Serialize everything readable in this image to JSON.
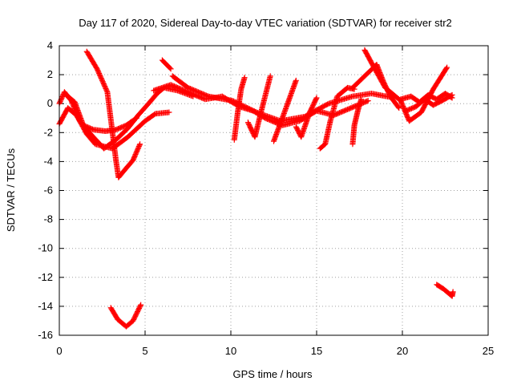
{
  "chart_data": {
    "type": "scatter",
    "title": "Day 117 of 2020, Sidereal Day-to-day VTEC variation (SDTVAR) for receiver str2",
    "xlabel": "GPS time / hours",
    "ylabel": "SDTVAR / TECUs",
    "xlim": [
      0,
      25
    ],
    "ylim": [
      -16,
      4
    ],
    "xticks": [
      "0",
      "5",
      "10",
      "15",
      "20",
      "25"
    ],
    "yticks": [
      "4",
      "2",
      "0",
      "-2",
      "-4",
      "-6",
      "-8",
      "-10",
      "-12",
      "-14",
      "-16"
    ],
    "grid": true,
    "marker": "+",
    "color": "#ff0000",
    "tracks": [
      [
        [
          1.6,
          3.6
        ],
        [
          2.2,
          2.4
        ],
        [
          2.8,
          0.8
        ],
        [
          3.1,
          -2.0
        ],
        [
          3.3,
          -3.9
        ],
        [
          3.45,
          -5.1
        ],
        [
          3.8,
          -4.6
        ],
        [
          4.3,
          -3.9
        ],
        [
          4.7,
          -2.8
        ]
      ],
      [
        [
          3.0,
          -14.1
        ],
        [
          3.4,
          -14.9
        ],
        [
          3.9,
          -15.4
        ],
        [
          4.3,
          -15.0
        ],
        [
          4.75,
          -13.9
        ]
      ],
      [
        [
          0,
          0
        ],
        [
          0.3,
          0.8
        ],
        [
          0.7,
          0.2
        ],
        [
          1.2,
          -1.2
        ],
        [
          1.9,
          -2.2
        ],
        [
          2.6,
          -3.1
        ],
        [
          3.3,
          -2.5
        ],
        [
          4.0,
          -1.7
        ],
        [
          4.6,
          -0.8
        ],
        [
          5.2,
          0
        ],
        [
          5.7,
          0.7
        ],
        [
          6.1,
          1.1
        ],
        [
          6.9,
          0.9
        ],
        [
          7.8,
          0.5
        ]
      ],
      [
        [
          0,
          -1.4
        ],
        [
          0.5,
          -0.3
        ],
        [
          1.0,
          -0.8
        ],
        [
          1.6,
          -2.1
        ],
        [
          2.1,
          -2.8
        ],
        [
          3.1,
          -3.1
        ],
        [
          4.0,
          -2.3
        ],
        [
          5.0,
          -1.2
        ],
        [
          5.6,
          -0.7
        ],
        [
          6.4,
          -0.6
        ]
      ],
      [
        [
          0.4,
          0.6
        ],
        [
          0.9,
          0.1
        ],
        [
          1.4,
          -1.5
        ],
        [
          2.0,
          -1.8
        ],
        [
          2.7,
          -1.9
        ],
        [
          3.3,
          -1.8
        ],
        [
          3.9,
          -1.5
        ],
        [
          4.5,
          -1.0
        ]
      ],
      [
        [
          6.0,
          3.0
        ],
        [
          6.5,
          2.4
        ]
      ],
      [
        [
          6.6,
          1.9
        ],
        [
          7.5,
          1.1
        ],
        [
          8.7,
          0.5
        ],
        [
          10.1,
          0.2
        ],
        [
          11.5,
          -0.6
        ],
        [
          12.9,
          -1.2
        ],
        [
          14.3,
          -0.9
        ],
        [
          15.7,
          0
        ],
        [
          17.1,
          0.5
        ],
        [
          18.2,
          0.7
        ],
        [
          19.5,
          0.4
        ]
      ],
      [
        [
          5.5,
          0.9
        ],
        [
          6.5,
          1.3
        ],
        [
          7.5,
          0.8
        ],
        [
          8.5,
          0.3
        ],
        [
          9.5,
          0.5
        ],
        [
          10.5,
          -0.2
        ],
        [
          11.3,
          -0.5
        ],
        [
          12.0,
          -1.0
        ],
        [
          13.0,
          -1.5
        ],
        [
          14.0,
          -1.2
        ],
        [
          15.0,
          -0.5
        ],
        [
          16.0,
          -0.8
        ],
        [
          17.0,
          -0.3
        ],
        [
          18.0,
          0.2
        ]
      ],
      [
        [
          10.2,
          -2.5
        ],
        [
          10.4,
          -0.6
        ],
        [
          10.6,
          1.0
        ],
        [
          10.8,
          1.8
        ]
      ],
      [
        [
          11.0,
          -1.3
        ],
        [
          11.4,
          -2.3
        ],
        [
          11.8,
          -0.4
        ],
        [
          12.3,
          1.9
        ]
      ],
      [
        [
          12.5,
          -2.6
        ],
        [
          13.0,
          -1.0
        ],
        [
          13.4,
          0.3
        ],
        [
          13.8,
          1.6
        ]
      ],
      [
        [
          13.8,
          -1.6
        ],
        [
          14.1,
          -2.3
        ],
        [
          14.6,
          -0.6
        ],
        [
          15.0,
          0.4
        ]
      ],
      [
        [
          15.2,
          -3.1
        ],
        [
          15.5,
          -2.8
        ],
        [
          15.8,
          -1.2
        ],
        [
          16.2,
          0.5
        ],
        [
          16.8,
          1.1
        ],
        [
          17.2,
          1.0
        ]
      ],
      [
        [
          17.1,
          -2.8
        ],
        [
          17.2,
          -1.5
        ],
        [
          17.4,
          -0.5
        ],
        [
          17.6,
          0.3
        ]
      ],
      [
        [
          17.8,
          3.7
        ],
        [
          18.3,
          2.6
        ],
        [
          19.0,
          1.1
        ],
        [
          19.5,
          0.6
        ],
        [
          19.9,
          0.2
        ],
        [
          20.4,
          -1.2
        ],
        [
          21.1,
          -0.6
        ],
        [
          21.8,
          1.0
        ],
        [
          22.6,
          2.5
        ]
      ],
      [
        [
          17.1,
          1.1
        ],
        [
          17.8,
          1.9
        ],
        [
          18.5,
          2.7
        ],
        [
          18.9,
          1.5
        ],
        [
          19.3,
          0.5
        ],
        [
          19.8,
          -0.3
        ]
      ],
      [
        [
          19.9,
          0.3
        ],
        [
          20.5,
          0.5
        ],
        [
          21.0,
          0.1
        ],
        [
          21.5,
          0.6
        ],
        [
          22.0,
          0.3
        ],
        [
          22.5,
          0.7
        ],
        [
          22.9,
          0.4
        ]
      ],
      [
        [
          20.2,
          -0.5
        ],
        [
          20.8,
          -0.2
        ],
        [
          21.3,
          0.3
        ],
        [
          21.8,
          -0.1
        ],
        [
          22.3,
          0.2
        ],
        [
          22.9,
          0.6
        ]
      ],
      [
        [
          22.0,
          -12.5
        ],
        [
          22.4,
          -12.8
        ],
        [
          22.9,
          -13.3
        ],
        [
          22.95,
          -13.0
        ]
      ]
    ]
  }
}
